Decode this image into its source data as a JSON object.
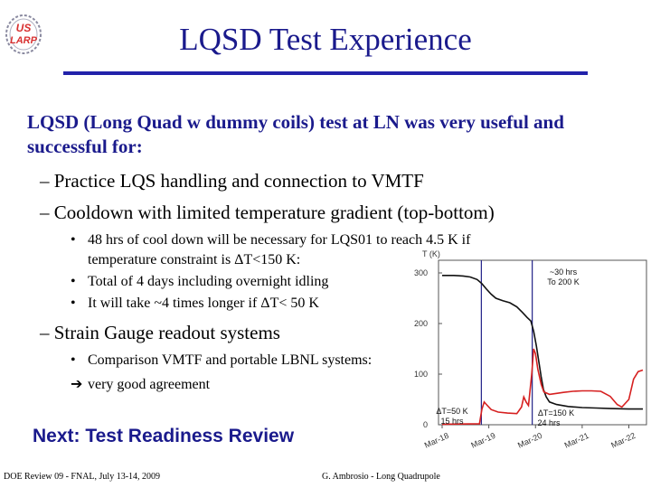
{
  "logo": {
    "line1": "US",
    "line2": "LARP"
  },
  "title": "LQSD Test Experience",
  "main_text": "LQSD (Long Quad w dummy coils) test at LN was very useful and successful for:",
  "sub_items": [
    "Practice LQS handling and connection to VMTF",
    "Cooldown with limited temperature gradient (top-bottom)",
    "Strain Gauge readout systems"
  ],
  "cooldown_bullets": [
    "48 hrs of cool down will be necessary for LQS01 to reach 4.5 K if",
    "temperature constraint is ΔT<150 K:",
    "Total of 4 days including overnight idling",
    "It will take ~4 times longer if ΔT< 50 K"
  ],
  "strain_bullets": [
    "Comparison VMTF and portable LBNL systems:",
    "very good agreement"
  ],
  "next": "Next: Test Readiness Review",
  "footer": {
    "left": "DOE Review 09 - FNAL, July 13-14, 2009",
    "center": "G. Ambrosio - Long Quadrupole"
  },
  "chart_data": {
    "type": "line",
    "ylabel": "T (K)",
    "ylim": [
      0,
      310
    ],
    "yticks": [
      0,
      100,
      200,
      300
    ],
    "x_range_days": [
      0,
      4.3
    ],
    "xticks": [
      {
        "label": "Mar-18",
        "day": 0
      },
      {
        "label": "Mar-19",
        "day": 1
      },
      {
        "label": "Mar-20",
        "day": 2
      },
      {
        "label": "Mar-21",
        "day": 3
      },
      {
        "label": "Mar-22",
        "day": 4
      }
    ],
    "series": [
      {
        "name": "temperature",
        "color": "#111111",
        "points": [
          [
            0,
            295
          ],
          [
            0.25,
            295
          ],
          [
            0.45,
            294
          ],
          [
            0.6,
            292
          ],
          [
            0.75,
            287
          ],
          [
            0.85,
            279
          ],
          [
            0.95,
            268
          ],
          [
            1.05,
            258
          ],
          [
            1.15,
            250
          ],
          [
            1.3,
            245
          ],
          [
            1.45,
            241
          ],
          [
            1.6,
            233
          ],
          [
            1.72,
            222
          ],
          [
            1.82,
            212
          ],
          [
            1.9,
            205
          ],
          [
            1.96,
            185
          ],
          [
            2.02,
            155
          ],
          [
            2.07,
            125
          ],
          [
            2.12,
            95
          ],
          [
            2.17,
            70
          ],
          [
            2.23,
            55
          ],
          [
            2.3,
            45
          ],
          [
            2.45,
            40
          ],
          [
            2.7,
            36
          ],
          [
            3.0,
            34
          ],
          [
            3.3,
            33
          ],
          [
            3.6,
            32
          ],
          [
            4.0,
            31
          ],
          [
            4.3,
            31
          ]
        ]
      },
      {
        "name": "gradient",
        "color": "#d62020",
        "points": [
          [
            0,
            1
          ],
          [
            0.8,
            2
          ],
          [
            0.85,
            30
          ],
          [
            0.9,
            45
          ],
          [
            0.95,
            40
          ],
          [
            1.05,
            30
          ],
          [
            1.2,
            25
          ],
          [
            1.4,
            23
          ],
          [
            1.6,
            22
          ],
          [
            1.7,
            35
          ],
          [
            1.75,
            55
          ],
          [
            1.8,
            45
          ],
          [
            1.85,
            38
          ],
          [
            1.92,
            100
          ],
          [
            1.96,
            150
          ],
          [
            2.0,
            140
          ],
          [
            2.05,
            110
          ],
          [
            2.12,
            80
          ],
          [
            2.18,
            65
          ],
          [
            2.3,
            60
          ],
          [
            2.45,
            62
          ],
          [
            2.6,
            64
          ],
          [
            2.8,
            66
          ],
          [
            3.0,
            67
          ],
          [
            3.2,
            67
          ],
          [
            3.4,
            66
          ],
          [
            3.6,
            56
          ],
          [
            3.75,
            40
          ],
          [
            3.85,
            35
          ],
          [
            4.0,
            50
          ],
          [
            4.1,
            90
          ],
          [
            4.2,
            105
          ],
          [
            4.3,
            108
          ]
        ]
      }
    ],
    "markers": [
      {
        "day": 0.84,
        "color": "#222288"
      },
      {
        "day": 1.93,
        "color": "#222288"
      }
    ],
    "annotations": [
      {
        "lines": [
          "~30 hrs",
          "To 200 K"
        ]
      },
      {
        "lines": [
          "ΔT=50 K",
          "15 hrs"
        ]
      },
      {
        "lines": [
          "ΔT=150 K",
          "24 hrs"
        ]
      }
    ]
  }
}
